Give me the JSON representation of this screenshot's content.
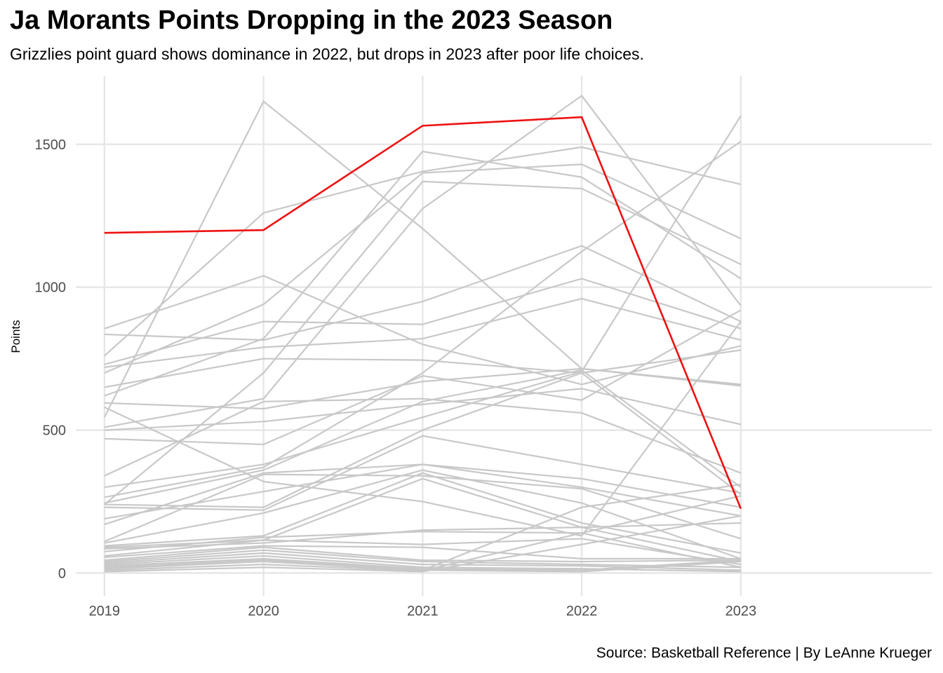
{
  "chart_data": {
    "type": "line",
    "title": "Ja Morants Points Dropping in the 2023 Season",
    "subtitle": "Grizzlies point guard shows dominance in 2022, but drops in 2023 after poor life choices.",
    "caption": "Source: Basketball Reference | By LeAnne Krueger",
    "xlabel": "",
    "ylabel": "Points",
    "x": [
      2019,
      2020,
      2021,
      2022,
      2023
    ],
    "xlim": [
      2018.82,
      2024.2
    ],
    "ylim": [
      -80,
      1740
    ],
    "yticks": [
      0,
      500,
      1000,
      1500
    ],
    "grid": true,
    "legend": "none",
    "colors": {
      "highlight": "#ee1111",
      "other": "#c8c8c8",
      "grid": "#e6e6e6"
    },
    "highlight_series": [
      1190,
      1200,
      1565,
      1595,
      225
    ],
    "series": [
      [
        855,
        1040,
        800,
        660,
        795
      ],
      [
        545,
        1650,
        1205,
        715,
        655
      ],
      [
        760,
        1260,
        1405,
        1490,
        1360
      ],
      [
        700,
        940,
        1400,
        1430,
        1170
      ],
      [
        620,
        820,
        1475,
        1385,
        1030
      ],
      [
        240,
        700,
        1370,
        1345,
        1080
      ],
      [
        510,
        610,
        1275,
        1670,
        935
      ],
      [
        835,
        815,
        950,
        1145,
        880
      ],
      [
        730,
        880,
        870,
        1030,
        855
      ],
      [
        720,
        790,
        820,
        960,
        815
      ],
      [
        650,
        750,
        745,
        700,
        780
      ],
      [
        595,
        575,
        670,
        715,
        660
      ],
      [
        500,
        530,
        590,
        645,
        520
      ],
      [
        470,
        450,
        690,
        605,
        920
      ],
      [
        340,
        600,
        610,
        560,
        350
      ],
      [
        300,
        380,
        545,
        705,
        1600
      ],
      [
        265,
        370,
        700,
        1125,
        1510
      ],
      [
        245,
        360,
        600,
        710,
        300
      ],
      [
        240,
        230,
        500,
        700,
        275
      ],
      [
        230,
        220,
        480,
        380,
        280
      ],
      [
        190,
        285,
        380,
        330,
        230
      ],
      [
        170,
        350,
        380,
        300,
        200
      ],
      [
        110,
        345,
        340,
        295,
        120
      ],
      [
        105,
        210,
        360,
        245,
        50
      ],
      [
        95,
        130,
        350,
        175,
        70
      ],
      [
        90,
        115,
        330,
        160,
        40
      ],
      [
        85,
        105,
        150,
        160,
        175
      ],
      [
        75,
        125,
        145,
        140,
        20
      ],
      [
        60,
        115,
        100,
        120,
        30
      ],
      [
        55,
        95,
        90,
        50,
        50
      ],
      [
        45,
        90,
        45,
        40,
        45
      ],
      [
        40,
        80,
        40,
        30,
        20
      ],
      [
        35,
        70,
        30,
        25,
        10
      ],
      [
        30,
        60,
        20,
        15,
        5
      ],
      [
        25,
        50,
        15,
        10,
        45
      ],
      [
        20,
        45,
        10,
        5,
        40
      ],
      [
        15,
        40,
        10,
        230,
        310
      ],
      [
        10,
        30,
        8,
        140,
        270
      ],
      [
        5,
        20,
        5,
        100,
        200
      ],
      [
        580,
        320,
        250,
        130,
        880
      ]
    ]
  }
}
